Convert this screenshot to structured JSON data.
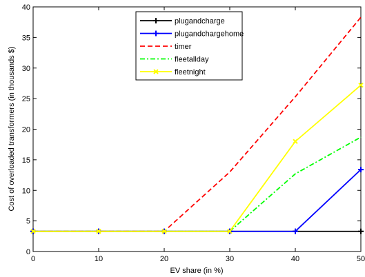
{
  "chart_data": {
    "type": "line",
    "xlabel": "EV share (in %)",
    "ylabel": "Cost of overloaded transformers (in thousands $)",
    "xlim": [
      0,
      50
    ],
    "ylim": [
      0,
      40
    ],
    "x_ticks": [
      0,
      10,
      20,
      30,
      40,
      50
    ],
    "y_ticks": [
      0,
      5,
      10,
      15,
      20,
      25,
      30,
      35,
      40
    ],
    "grid": false,
    "legend_position": "top-center",
    "x": [
      0,
      10,
      20,
      30,
      40,
      50
    ],
    "series": [
      {
        "name": "plugandcharge",
        "values": [
          3.3,
          3.3,
          3.3,
          3.3,
          3.3,
          3.3
        ],
        "color": "#000000",
        "dash": "solid",
        "marker": "plus"
      },
      {
        "name": "plugandchargehome",
        "values": [
          3.3,
          3.3,
          3.3,
          3.3,
          3.3,
          13.4
        ],
        "color": "#0000ff",
        "dash": "solid",
        "marker": "plus"
      },
      {
        "name": "timer",
        "values": [
          3.3,
          3.3,
          3.3,
          13.0,
          25.3,
          38.3
        ],
        "color": "#ff0000",
        "dash": "dashed",
        "marker": "none"
      },
      {
        "name": "fleetallday",
        "values": [
          3.3,
          3.3,
          3.3,
          3.3,
          12.7,
          18.7
        ],
        "color": "#00ff00",
        "dash": "dashdot",
        "marker": "none"
      },
      {
        "name": "fleetnight",
        "values": [
          3.3,
          3.3,
          3.3,
          3.3,
          18.0,
          27.2
        ],
        "color": "#ffff00",
        "dash": "solid",
        "marker": "x"
      }
    ]
  }
}
